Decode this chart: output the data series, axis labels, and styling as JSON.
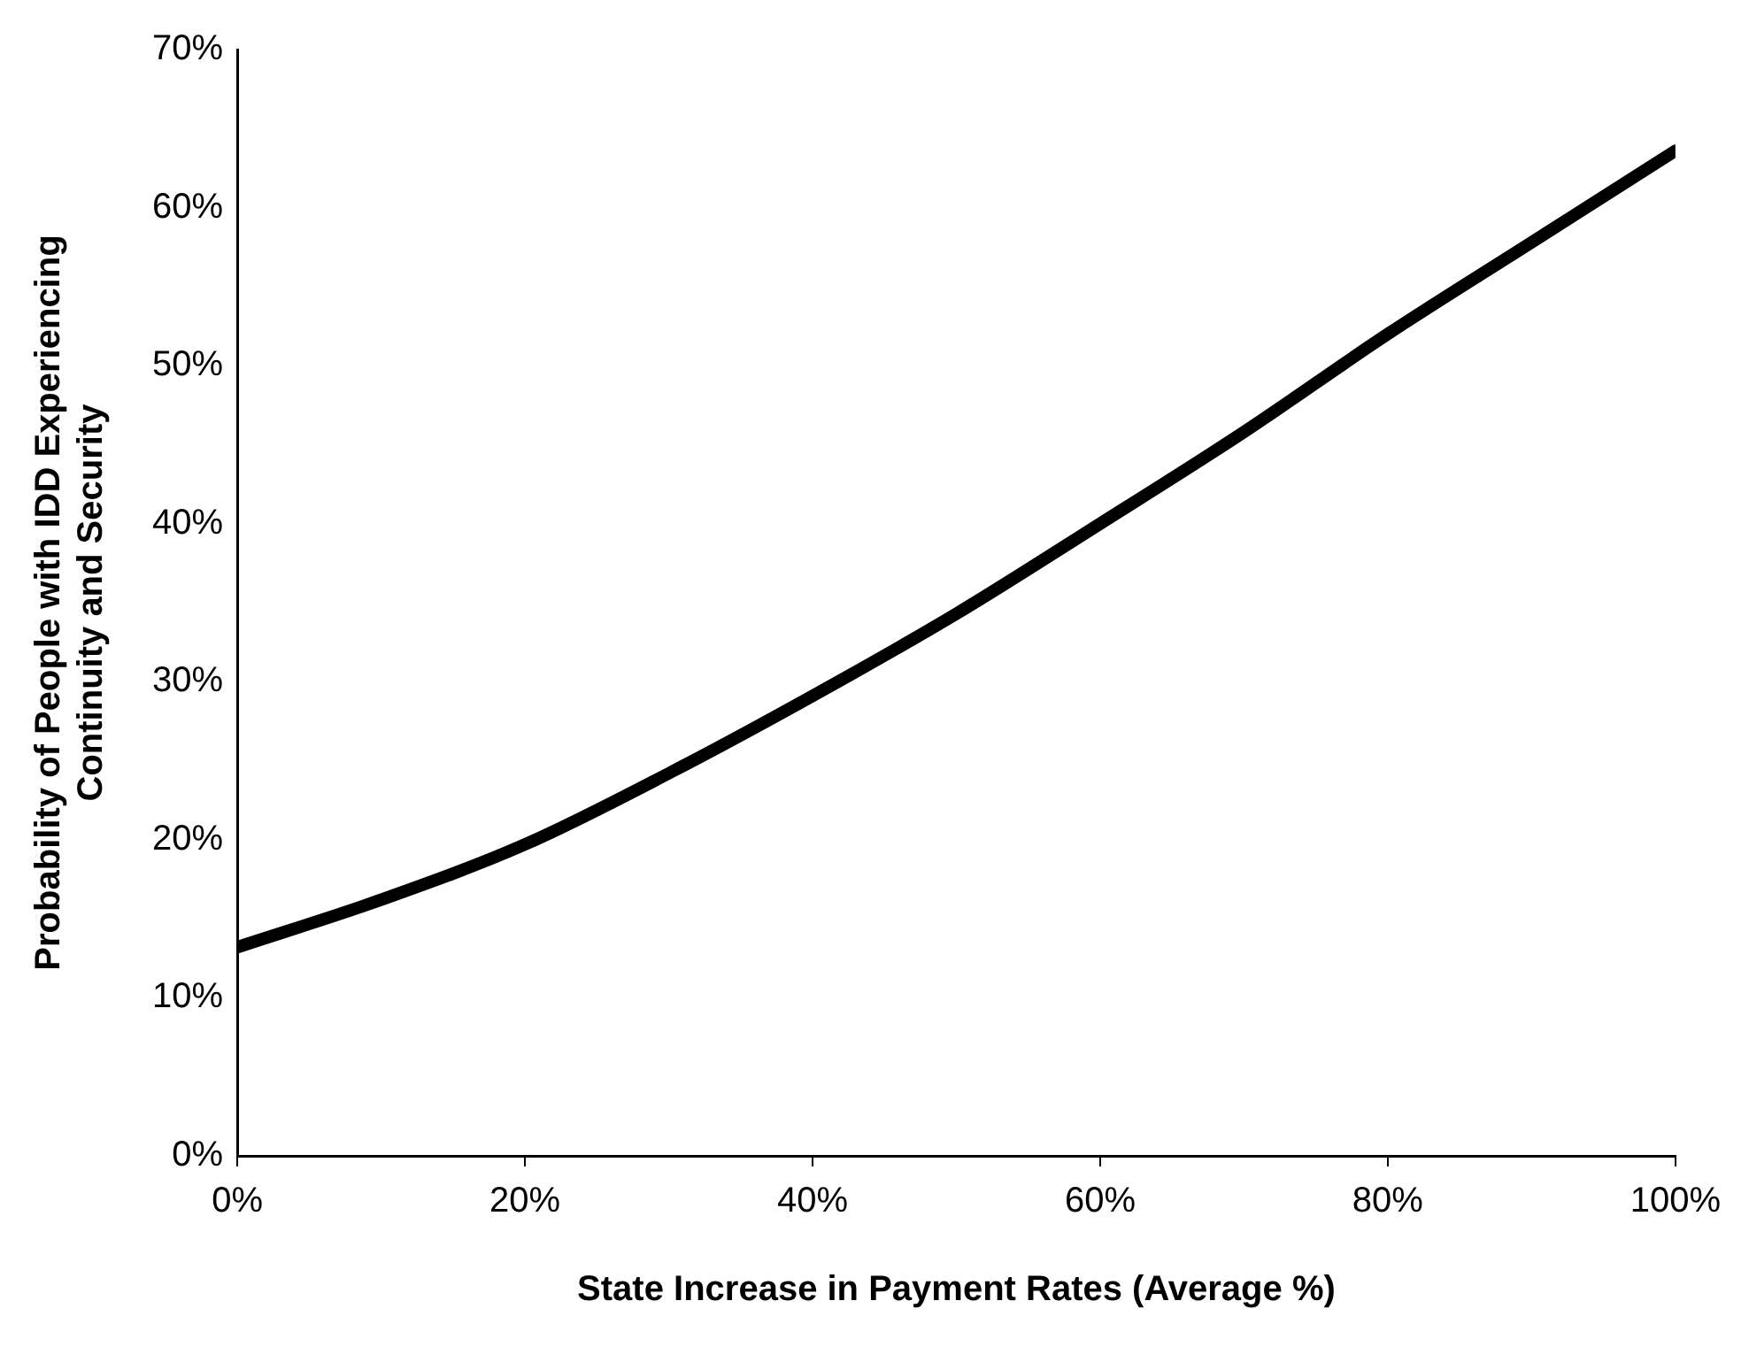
{
  "chart_data": {
    "type": "line",
    "xlabel": "State Increase in Payment Rates (Average %)",
    "ylabel": "Probability of People with IDD Experiencing\nContinuity and Security",
    "x": [
      0,
      10,
      20,
      30,
      40,
      50,
      60,
      70,
      80,
      90,
      100
    ],
    "series": [
      {
        "color": "#000000",
        "values": [
          13.2,
          16.2,
          19.7,
          24.2,
          29.1,
          34.3,
          40,
          45.8,
          52,
          57.8,
          63.6
        ]
      }
    ],
    "xlim": [
      0,
      100
    ],
    "ylim": [
      0,
      70
    ],
    "xticks": [
      {
        "value": 0,
        "label": "0%"
      },
      {
        "value": 20,
        "label": "20%"
      },
      {
        "value": 40,
        "label": "40%"
      },
      {
        "value": 60,
        "label": "60%"
      },
      {
        "value": 80,
        "label": "80%"
      },
      {
        "value": 100,
        "label": "100%"
      }
    ],
    "yticks": [
      {
        "value": 0,
        "label": "0%"
      },
      {
        "value": 10,
        "label": "10%"
      },
      {
        "value": 20,
        "label": "20%"
      },
      {
        "value": 30,
        "label": "30%"
      },
      {
        "value": 40,
        "label": "40%"
      },
      {
        "value": 50,
        "label": "50%"
      },
      {
        "value": 60,
        "label": "60%"
      },
      {
        "value": 70,
        "label": "70%"
      }
    ],
    "grid": false,
    "legend": false,
    "marker": "none",
    "line_style": "solid"
  }
}
